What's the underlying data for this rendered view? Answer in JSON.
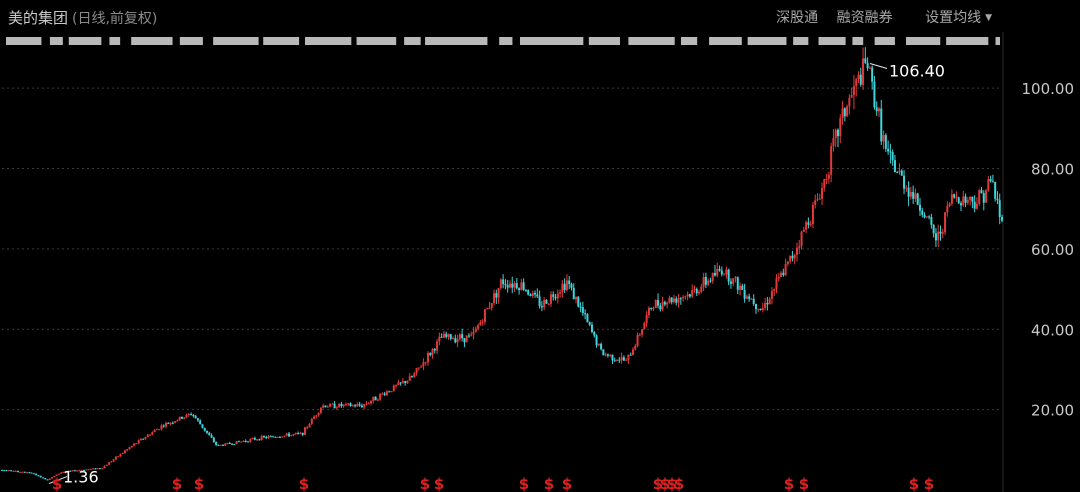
{
  "header": {
    "stock_name": "美的集团",
    "period_label": "(日线,前复权)",
    "menu": [
      "深股通",
      "融资融券",
      "设置均线"
    ]
  },
  "colors": {
    "background": "#000000",
    "up": "#e23a3a",
    "down": "#3ed6dc",
    "grid": "#3a3a3a",
    "axis_text": "#c8c8c8",
    "marker": "#e02020"
  },
  "chart_data": {
    "type": "candlestick",
    "ylim": [
      0,
      110
    ],
    "yticks": [
      20,
      40,
      60,
      80,
      100
    ],
    "ytick_labels": [
      "20.00",
      "40.00",
      "60.00",
      "80.00",
      "100.00"
    ],
    "annotations": [
      {
        "label": "106.40",
        "value": 106.4,
        "kind": "max"
      },
      {
        "label": "1.36",
        "value": 1.36,
        "kind": "min"
      }
    ],
    "price_path": [
      [
        0,
        5
      ],
      [
        0.03,
        4.2
      ],
      [
        0.045,
        2.5
      ],
      [
        0.06,
        4.5
      ],
      [
        0.1,
        5.5
      ],
      [
        0.13,
        11
      ],
      [
        0.16,
        16
      ],
      [
        0.19,
        19
      ],
      [
        0.215,
        11
      ],
      [
        0.26,
        13
      ],
      [
        0.3,
        14
      ],
      [
        0.32,
        21
      ],
      [
        0.36,
        21
      ],
      [
        0.41,
        28
      ],
      [
        0.44,
        38
      ],
      [
        0.47,
        38
      ],
      [
        0.5,
        52
      ],
      [
        0.52,
        51
      ],
      [
        0.54,
        46
      ],
      [
        0.565,
        52
      ],
      [
        0.6,
        34
      ],
      [
        0.625,
        32
      ],
      [
        0.65,
        46
      ],
      [
        0.69,
        49
      ],
      [
        0.72,
        55
      ],
      [
        0.76,
        45
      ],
      [
        0.79,
        58
      ],
      [
        0.82,
        75
      ],
      [
        0.84,
        93
      ],
      [
        0.865,
        106.4
      ],
      [
        0.885,
        83
      ],
      [
        0.92,
        70
      ],
      [
        0.935,
        62
      ],
      [
        0.95,
        73
      ],
      [
        0.975,
        72
      ],
      [
        0.99,
        77
      ],
      [
        1,
        66
      ]
    ],
    "markers": [
      {
        "label": "$",
        "pos": 0.055
      },
      {
        "label": "$",
        "pos": 0.175
      },
      {
        "label": "$",
        "pos": 0.197
      },
      {
        "label": "$",
        "pos": 0.302
      },
      {
        "label": "$",
        "pos": 0.423
      },
      {
        "label": "$",
        "pos": 0.437
      },
      {
        "label": "$",
        "pos": 0.522
      },
      {
        "label": "$",
        "pos": 0.547
      },
      {
        "label": "$",
        "pos": 0.565
      },
      {
        "label": "$",
        "pos": 0.656
      },
      {
        "label": "$",
        "pos": 0.663
      },
      {
        "label": "$",
        "pos": 0.67
      },
      {
        "label": "$",
        "pos": 0.677
      },
      {
        "label": "$",
        "pos": 0.787
      },
      {
        "label": "$",
        "pos": 0.802
      },
      {
        "label": "$",
        "pos": 0.912
      },
      {
        "label": "$",
        "pos": 0.927
      }
    ]
  }
}
